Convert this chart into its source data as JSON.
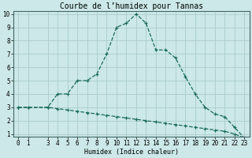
{
  "title": "Courbe de l’humidex pour Tannas",
  "xlabel": "Humidex (Indice chaleur)",
  "bg_color": "#cce8e8",
  "grid_color": "#aacccc",
  "line_color": "#1a6b5a",
  "x_upper": [
    0,
    1,
    3,
    4,
    5,
    6,
    7,
    8,
    9,
    10,
    11,
    12,
    13,
    14,
    15,
    16,
    17,
    18,
    19,
    20,
    21,
    22,
    23
  ],
  "y_upper": [
    3.0,
    3.0,
    3.0,
    4.0,
    4.0,
    5.0,
    5.0,
    5.5,
    7.0,
    9.0,
    9.3,
    10.0,
    9.3,
    7.3,
    7.3,
    6.7,
    5.3,
    4.0,
    3.0,
    2.5,
    2.3,
    1.5,
    0.7
  ],
  "x_lower": [
    0,
    1,
    3,
    4,
    5,
    6,
    7,
    8,
    9,
    10,
    11,
    12,
    13,
    14,
    15,
    16,
    17,
    18,
    19,
    20,
    21,
    22,
    23
  ],
  "y_lower": [
    3.0,
    3.0,
    3.0,
    2.9,
    2.8,
    2.7,
    2.6,
    2.5,
    2.4,
    2.3,
    2.2,
    2.1,
    2.0,
    1.9,
    1.8,
    1.7,
    1.6,
    1.5,
    1.4,
    1.3,
    1.2,
    1.0,
    0.7
  ],
  "xlim": [
    -0.5,
    23.5
  ],
  "ylim": [
    0.8,
    10.2
  ],
  "yticks": [
    1,
    2,
    3,
    4,
    5,
    6,
    7,
    8,
    9,
    10
  ],
  "xticks": [
    0,
    1,
    3,
    4,
    5,
    6,
    7,
    8,
    9,
    10,
    11,
    12,
    13,
    14,
    15,
    16,
    17,
    18,
    19,
    20,
    21,
    22,
    23
  ],
  "title_fontsize": 7,
  "axis_fontsize": 6,
  "tick_fontsize": 5.5
}
